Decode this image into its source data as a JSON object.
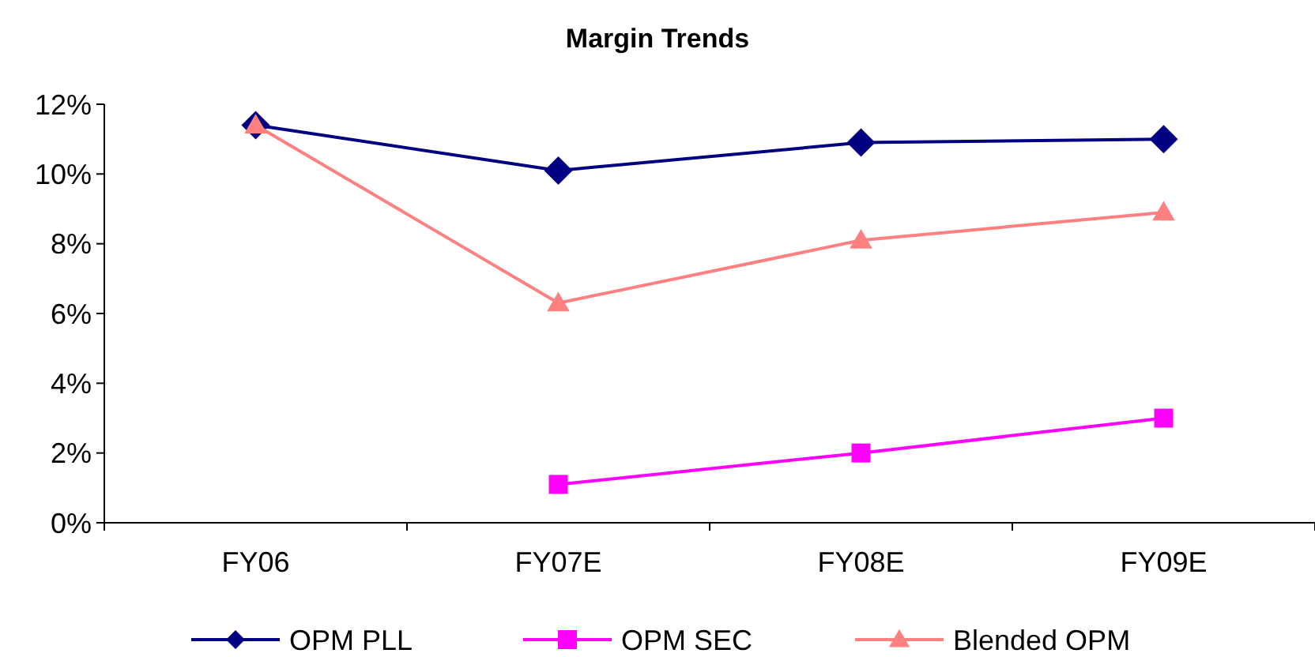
{
  "chart_data": {
    "type": "line",
    "title": "Margin Trends",
    "categories": [
      "FY06",
      "FY07E",
      "FY08E",
      "FY09E"
    ],
    "series": [
      {
        "name": "OPM PLL",
        "color": "#000080",
        "marker": "diamond",
        "values": [
          11.4,
          10.1,
          10.9,
          11.0
        ]
      },
      {
        "name": "OPM SEC",
        "color": "#ff00ff",
        "marker": "square",
        "values": [
          null,
          1.1,
          2.0,
          3.0
        ]
      },
      {
        "name": "Blended OPM",
        "color": "#ff8080",
        "marker": "triangle",
        "values": [
          11.4,
          6.3,
          8.1,
          8.9
        ]
      }
    ],
    "ylim": [
      0,
      12
    ],
    "yticks": [
      {
        "value": 0,
        "label": "0%"
      },
      {
        "value": 2,
        "label": "2%"
      },
      {
        "value": 4,
        "label": "4%"
      },
      {
        "value": 6,
        "label": "6%"
      },
      {
        "value": 8,
        "label": "8%"
      },
      {
        "value": 10,
        "label": "10%"
      },
      {
        "value": 12,
        "label": "12%"
      }
    ],
    "grid": false,
    "legend": "bottom",
    "line_style": "solid"
  }
}
